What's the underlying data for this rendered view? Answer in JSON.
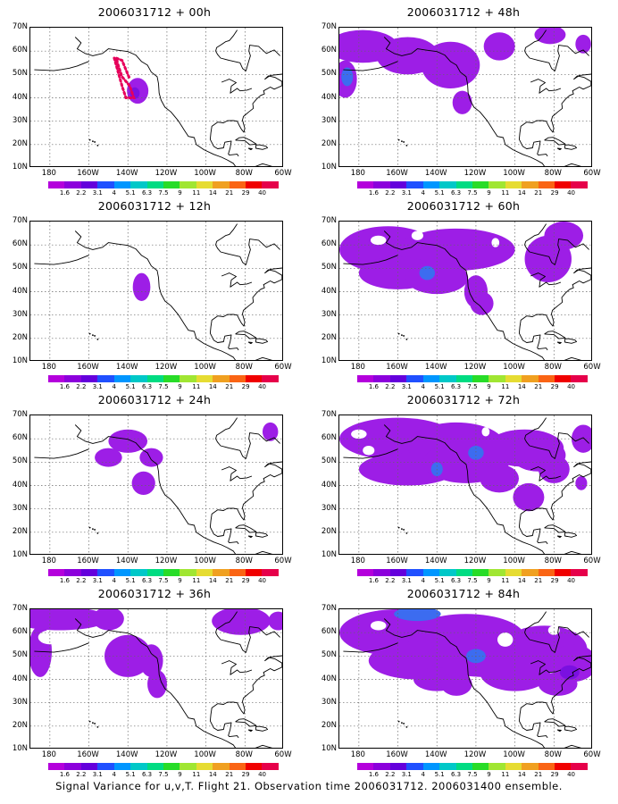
{
  "caption": "Signal Variance for u,v,T. Flight 21. Observation time 2006031712. 2006031400 ensemble.",
  "lat_labels": [
    "70N",
    "60N",
    "50N",
    "40N",
    "30N",
    "20N",
    "10N"
  ],
  "lon_labels": [
    "180",
    "160W",
    "140W",
    "120W",
    "100W",
    "80W",
    "60W"
  ],
  "colorbar": {
    "labels": [
      "1.6",
      "2.2",
      "3.1",
      "4",
      "5.1",
      "6.3",
      "7.5",
      "9",
      "11",
      "14",
      "21",
      "29",
      "40"
    ],
    "colors": [
      "#b400dc",
      "#8c00dc",
      "#6400dc",
      "#2050ff",
      "#0096ff",
      "#00c8c8",
      "#00dc82",
      "#28dc28",
      "#a0e632",
      "#e6dc32",
      "#f0a020",
      "#fa6414",
      "#f00000",
      "#e6004a"
    ]
  },
  "map_extent": {
    "lon_min": -190,
    "lon_max": -60,
    "lat_min": 10,
    "lat_max": 70
  },
  "panels": [
    {
      "id": "00h",
      "title": "2006031712 + 00h",
      "col": 0,
      "row": 0,
      "flight_track": true
    },
    {
      "id": "12h",
      "title": "2006031712 + 12h",
      "col": 0,
      "row": 1
    },
    {
      "id": "24h",
      "title": "2006031712 + 24h",
      "col": 0,
      "row": 2
    },
    {
      "id": "36h",
      "title": "2006031712 + 36h",
      "col": 0,
      "row": 3
    },
    {
      "id": "48h",
      "title": "2006031712 + 48h",
      "col": 1,
      "row": 0
    },
    {
      "id": "60h",
      "title": "2006031712 + 60h",
      "col": 1,
      "row": 1
    },
    {
      "id": "72h",
      "title": "2006031712 + 72h",
      "col": 1,
      "row": 2
    },
    {
      "id": "84h",
      "title": "2006031712 + 84h",
      "col": 1,
      "row": 3
    }
  ],
  "colors": {
    "shade_low": "#9d1ee6",
    "shade_mid": "#7a10e0",
    "shade_high": "#3c6cf0",
    "track": "#e6005a"
  }
}
